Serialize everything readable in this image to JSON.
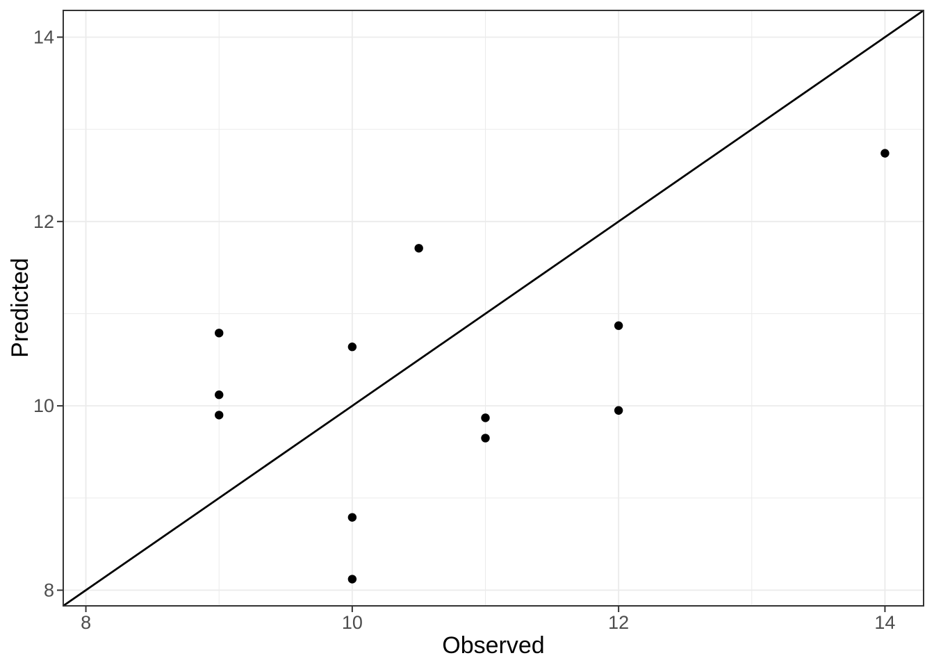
{
  "chart_data": {
    "type": "scatter",
    "title": "",
    "xlabel": "Observed",
    "ylabel": "Predicted",
    "x_ticks": [
      8,
      10,
      12,
      14
    ],
    "y_ticks": [
      8,
      10,
      12,
      14
    ],
    "x_minor_ticks": [
      9,
      11,
      13
    ],
    "y_minor_ticks": [
      9,
      11,
      13
    ],
    "xlim": [
      7.83,
      14.29
    ],
    "ylim": [
      7.83,
      14.29
    ],
    "grid": true,
    "legend": "none",
    "points": [
      {
        "x": 9,
        "y": 10.79
      },
      {
        "x": 9,
        "y": 10.12
      },
      {
        "x": 9,
        "y": 9.9
      },
      {
        "x": 10,
        "y": 10.64
      },
      {
        "x": 10,
        "y": 8.79
      },
      {
        "x": 10,
        "y": 8.12
      },
      {
        "x": 10.5,
        "y": 11.71
      },
      {
        "x": 11,
        "y": 9.87
      },
      {
        "x": 11,
        "y": 9.65
      },
      {
        "x": 12,
        "y": 10.87
      },
      {
        "x": 12,
        "y": 9.95
      },
      {
        "x": 14,
        "y": 12.74
      }
    ],
    "reference_line": {
      "type": "identity",
      "slope": 1,
      "intercept": 0
    },
    "colors": {
      "background": "#FFFFFF",
      "panel_background": "#FFFFFF",
      "grid_major": "#EBEBEB",
      "grid_minor": "#EBEBEB",
      "panel_border": "#333333",
      "tick_mark": "#333333",
      "tick_label": "#4D4D4D",
      "axis_title": "#000000",
      "point": "#000000",
      "reference_line_color": "#000000"
    }
  }
}
